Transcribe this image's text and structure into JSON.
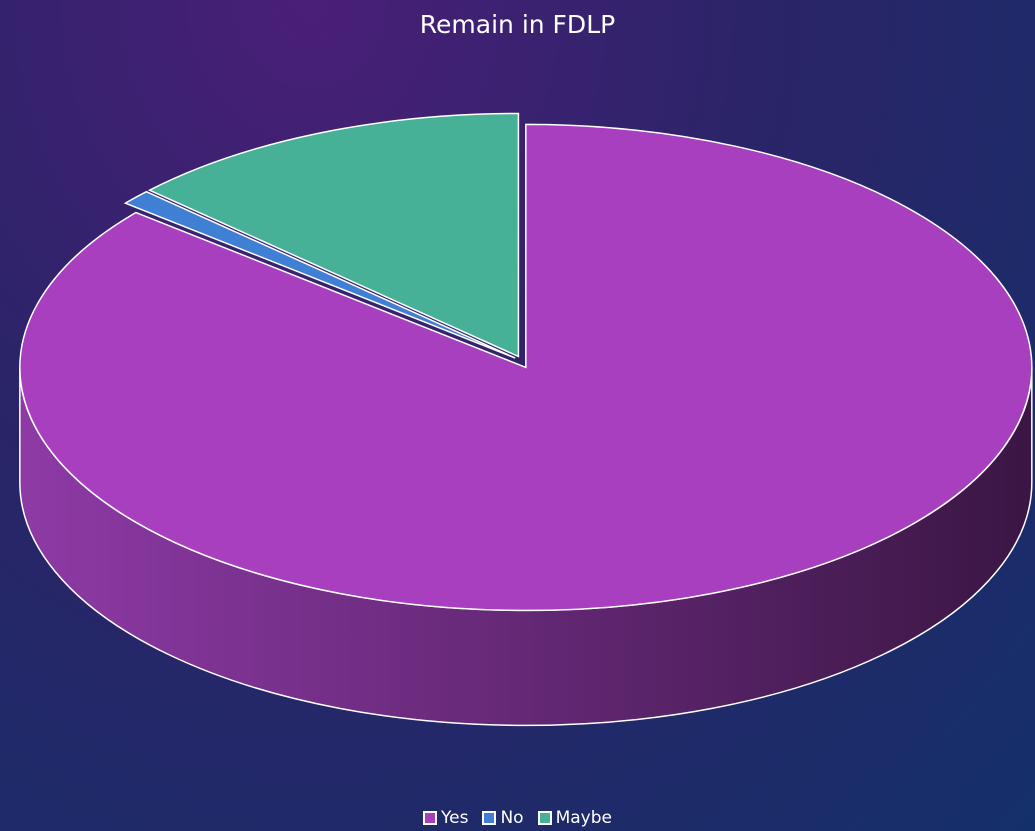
{
  "chart_data": {
    "type": "pie",
    "title": "Remain in FDLP",
    "categories": [
      "Yes",
      "No",
      "Maybe"
    ],
    "values": [
      86,
      1,
      13
    ],
    "colors": [
      "#a83fbf",
      "#3f7fd4",
      "#46b196"
    ],
    "legend": "bottom"
  }
}
